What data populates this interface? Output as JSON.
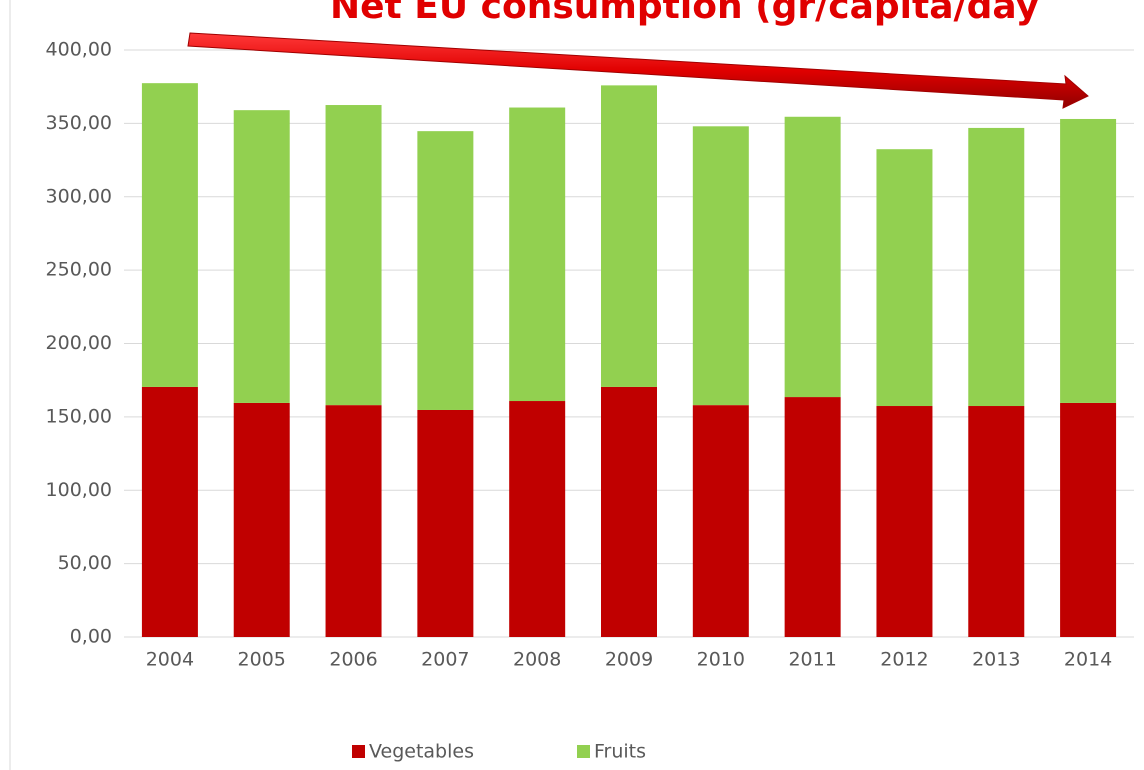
{
  "chart_data": {
    "type": "stacked_bar",
    "title": "Net EU consumption (gr/capita/day",
    "categories": [
      "2004",
      "2005",
      "2006",
      "2007",
      "2008",
      "2009",
      "2010",
      "2011",
      "2012",
      "2013",
      "2014"
    ],
    "series": [
      {
        "name": "Vegetables",
        "color": "#c00000",
        "values": [
          170.4,
          159.5,
          158,
          154.7,
          160.8,
          170.4,
          158,
          163.5,
          157.4,
          157.4,
          159.5
        ]
      },
      {
        "name": "Fruits",
        "color": "#92d050",
        "values": [
          207,
          199.5,
          204.5,
          190,
          200,
          205.5,
          190,
          191,
          175,
          189.5,
          193.5
        ]
      }
    ],
    "ylim": [
      0,
      400
    ],
    "yticks": [
      {
        "value": 0,
        "label": "0,00"
      },
      {
        "value": 50,
        "label": "50,00"
      },
      {
        "value": 100,
        "label": "100,00"
      },
      {
        "value": 150,
        "label": "150,00"
      },
      {
        "value": 200,
        "label": "200,00"
      },
      {
        "value": 250,
        "label": "250,00"
      },
      {
        "value": 300,
        "label": "300,00"
      },
      {
        "value": 350,
        "label": "350,00"
      },
      {
        "value": 400,
        "label": "400,00"
      }
    ],
    "grid": true,
    "legend": "bottom"
  }
}
